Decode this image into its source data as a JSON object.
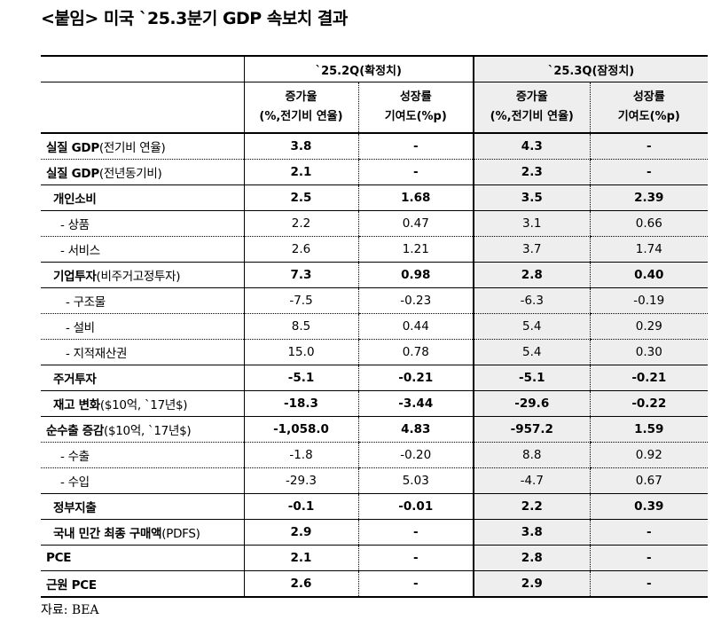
{
  "title": "<붙임> 미국 `25.3분기 GDP 속보치 결과",
  "columns": {
    "q2": "`25.2Q(확정치)",
    "q3": "`25.3Q(잠정치)",
    "growth_l1": "증가율",
    "growth_l2": "(%,전기비 연율)",
    "contrib_l1": "성장률",
    "contrib_l2": "기여도(%p)"
  },
  "rows": [
    {
      "label_bold": "실질 GDP",
      "label_rest": "(전기비 연율)",
      "q2_growth": "3.8",
      "q2_contrib": "-",
      "q3_growth": "4.3",
      "q3_contrib": "-"
    },
    {
      "label_bold": "실질 GDP",
      "label_rest": "(전년동기비)",
      "q2_growth": "2.1",
      "q2_contrib": "-",
      "q3_growth": "2.3",
      "q3_contrib": "-"
    },
    {
      "label_bold": "개인소비",
      "label_rest": "",
      "q2_growth": "2.5",
      "q2_contrib": "1.68",
      "q3_growth": "3.5",
      "q3_contrib": "2.39"
    },
    {
      "label_bold": "",
      "label_rest": "- 상품",
      "q2_growth": "2.2",
      "q2_contrib": "0.47",
      "q3_growth": "3.1",
      "q3_contrib": "0.66"
    },
    {
      "label_bold": "",
      "label_rest": "- 서비스",
      "q2_growth": "2.6",
      "q2_contrib": "1.21",
      "q3_growth": "3.7",
      "q3_contrib": "1.74"
    },
    {
      "label_bold": "기업투자",
      "label_rest": "(비주거고정투자)",
      "q2_growth": "7.3",
      "q2_contrib": "0.98",
      "q3_growth": "2.8",
      "q3_contrib": "0.40"
    },
    {
      "label_bold": "",
      "label_rest": "- 구조물",
      "q2_growth": "-7.5",
      "q2_contrib": "-0.23",
      "q3_growth": "-6.3",
      "q3_contrib": "-0.19"
    },
    {
      "label_bold": "",
      "label_rest": "- 설비",
      "q2_growth": "8.5",
      "q2_contrib": "0.44",
      "q3_growth": "5.4",
      "q3_contrib": "0.29"
    },
    {
      "label_bold": "",
      "label_rest": "- 지적재산권",
      "q2_growth": "15.0",
      "q2_contrib": "0.78",
      "q3_growth": "5.4",
      "q3_contrib": "0.30"
    },
    {
      "label_bold": "주거투자",
      "label_rest": "",
      "q2_growth": "-5.1",
      "q2_contrib": "-0.21",
      "q3_growth": "-5.1",
      "q3_contrib": "-0.21"
    },
    {
      "label_bold": "재고 변화",
      "label_rest": "($10억, `17년$)",
      "q2_growth": "-18.3",
      "q2_contrib": "-3.44",
      "q3_growth": "-29.6",
      "q3_contrib": "-0.22"
    },
    {
      "label_bold": "순수출 증감",
      "label_rest": "($10억, `17년$)",
      "q2_growth": "-1,058.0",
      "q2_contrib": "4.83",
      "q3_growth": "-957.2",
      "q3_contrib": "1.59"
    },
    {
      "label_bold": "",
      "label_rest": "- 수출",
      "q2_growth": "-1.8",
      "q2_contrib": "-0.20",
      "q3_growth": "8.8",
      "q3_contrib": "0.92"
    },
    {
      "label_bold": "",
      "label_rest": "- 수입",
      "q2_growth": "-29.3",
      "q2_contrib": "5.03",
      "q3_growth": "-4.7",
      "q3_contrib": "0.67"
    },
    {
      "label_bold": "정부지출",
      "label_rest": "",
      "q2_growth": "-0.1",
      "q2_contrib": "-0.01",
      "q3_growth": "2.2",
      "q3_contrib": "0.39"
    },
    {
      "label_bold": "국내 민간 최종 구매액",
      "label_rest": "(PDFS)",
      "q2_growth": "2.9",
      "q2_contrib": "-",
      "q3_growth": "3.8",
      "q3_contrib": "-"
    },
    {
      "label_bold": "PCE",
      "label_rest": "",
      "q2_growth": "2.1",
      "q2_contrib": "-",
      "q3_growth": "2.8",
      "q3_contrib": "-"
    },
    {
      "label_bold": "근원 PCE",
      "label_rest": "",
      "q2_growth": "2.6",
      "q2_contrib": "-",
      "q3_growth": "2.9",
      "q3_contrib": "-"
    }
  ],
  "source": "자료: BEA"
}
